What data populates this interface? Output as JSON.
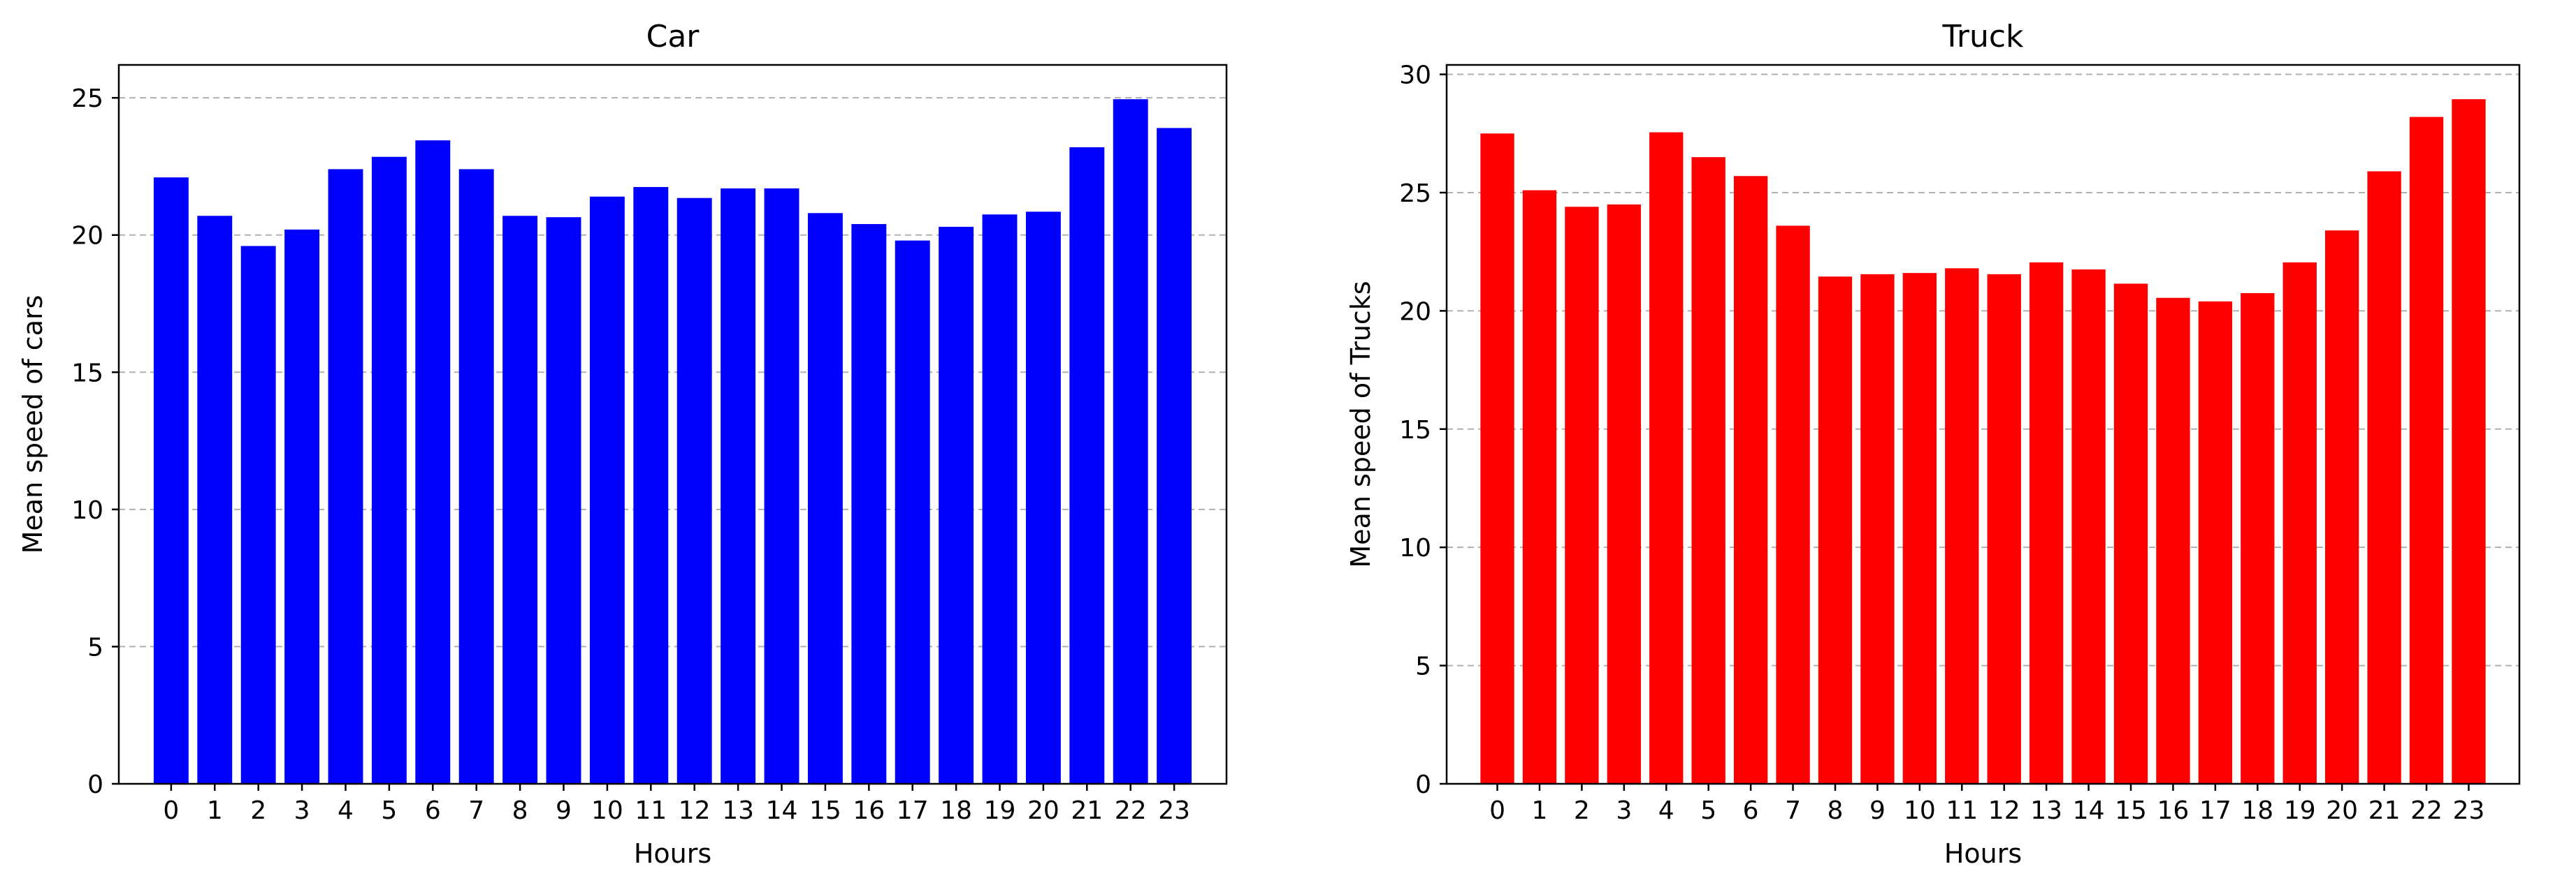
{
  "chart_data": [
    {
      "type": "bar",
      "title": "Car",
      "xlabel": "Hours",
      "ylabel": "Mean speed of cars",
      "categories": [
        "0",
        "1",
        "2",
        "3",
        "4",
        "5",
        "6",
        "7",
        "8",
        "9",
        "10",
        "11",
        "12",
        "13",
        "14",
        "15",
        "16",
        "17",
        "18",
        "19",
        "20",
        "21",
        "22",
        "23"
      ],
      "values": [
        22.1,
        20.7,
        19.6,
        20.2,
        22.4,
        22.85,
        23.45,
        22.4,
        20.7,
        20.65,
        21.4,
        21.75,
        21.35,
        21.7,
        21.7,
        20.8,
        20.4,
        19.8,
        20.3,
        20.75,
        20.85,
        23.2,
        24.95,
        23.9
      ],
      "yticks": [
        0,
        5,
        10,
        15,
        20,
        25
      ],
      "ylim": [
        0,
        26.2
      ],
      "grid": "y, dashed",
      "bar_color": "#0000ff"
    },
    {
      "type": "bar",
      "title": "Truck",
      "xlabel": "Hours",
      "ylabel": "Mean speed of Trucks",
      "categories": [
        "0",
        "1",
        "2",
        "3",
        "4",
        "5",
        "6",
        "7",
        "8",
        "9",
        "10",
        "11",
        "12",
        "13",
        "14",
        "15",
        "16",
        "17",
        "18",
        "19",
        "20",
        "21",
        "22",
        "23"
      ],
      "values": [
        27.5,
        25.1,
        24.4,
        24.5,
        27.55,
        26.5,
        25.7,
        23.6,
        21.45,
        21.55,
        21.6,
        21.8,
        21.55,
        22.05,
        21.75,
        21.15,
        20.55,
        20.4,
        20.75,
        22.05,
        23.4,
        25.9,
        28.2,
        28.95
      ],
      "yticks": [
        0,
        5,
        10,
        15,
        20,
        25,
        30
      ],
      "ylim": [
        0,
        30.4
      ],
      "grid": "y, dashed",
      "bar_color": "#ff0000"
    }
  ]
}
